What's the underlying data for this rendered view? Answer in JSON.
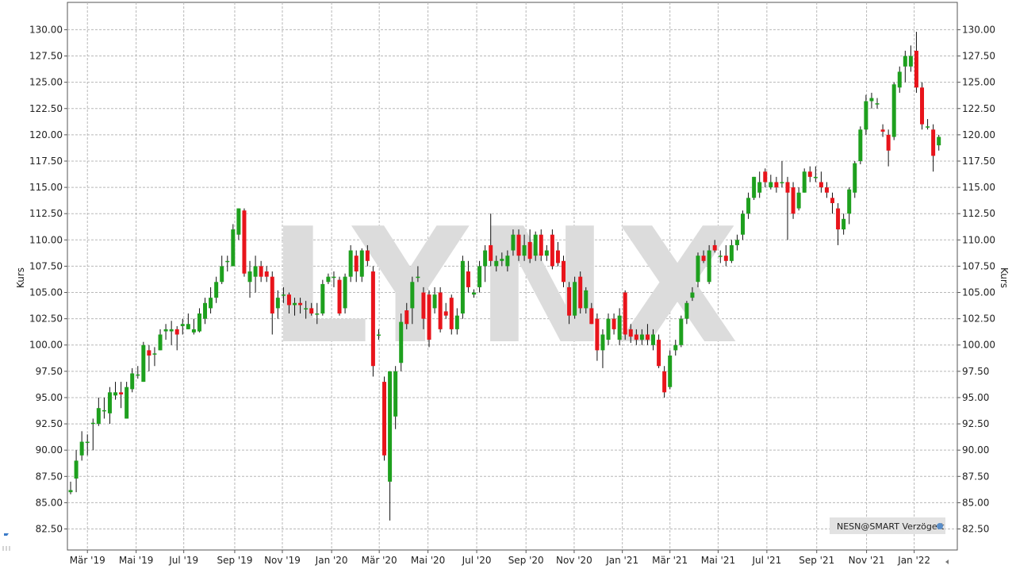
{
  "chart_data": {
    "type": "candlestick",
    "watermark": "LYNX",
    "legend_text": "NESN@SMART Verzögert",
    "y_axis_label": "Kurs",
    "y2_axis_label": "Kurs",
    "grid": true,
    "up_color": "#1ea01e",
    "down_color": "#e8141b",
    "xlim": [
      -0.57,
      158.3
    ],
    "xticks": [
      {
        "value": 3.0,
        "label": "Mär '19"
      },
      {
        "value": 11.7,
        "label": "Mai '19"
      },
      {
        "value": 20.2,
        "label": "Jul '19"
      },
      {
        "value": 29.3,
        "label": "Sep '19"
      },
      {
        "value": 37.8,
        "label": "Nov '19"
      },
      {
        "value": 46.6,
        "label": "Jan '20"
      },
      {
        "value": 55.1,
        "label": "Mär '20"
      },
      {
        "value": 63.8,
        "label": "Mai '20"
      },
      {
        "value": 72.5,
        "label": "Jul '20"
      },
      {
        "value": 81.3,
        "label": "Sep '20"
      },
      {
        "value": 89.9,
        "label": "Nov '20"
      },
      {
        "value": 98.5,
        "label": "Jan '21"
      },
      {
        "value": 107.0,
        "label": "Mär '21"
      },
      {
        "value": 115.6,
        "label": "Mai '21"
      },
      {
        "value": 124.3,
        "label": "Jul '21"
      },
      {
        "value": 133.2,
        "label": "Sep '21"
      },
      {
        "value": 142.1,
        "label": "Nov '21"
      },
      {
        "value": 150.6,
        "label": "Jan '22"
      }
    ],
    "ylim": [
      80.5,
      132.6
    ],
    "yticks": [
      {
        "value": 82.5,
        "label": "82.50"
      },
      {
        "value": 85,
        "label": "85.00"
      },
      {
        "value": 87.5,
        "label": "87.50"
      },
      {
        "value": 90,
        "label": "90.00"
      },
      {
        "value": 92.5,
        "label": "92.50"
      },
      {
        "value": 95,
        "label": "95.00"
      },
      {
        "value": 97.5,
        "label": "97.50"
      },
      {
        "value": 100,
        "label": "100.00"
      },
      {
        "value": 102.5,
        "label": "102.50"
      },
      {
        "value": 105,
        "label": "105.00"
      },
      {
        "value": 107.5,
        "label": "107.50"
      },
      {
        "value": 110,
        "label": "110.00"
      },
      {
        "value": 112.5,
        "label": "112.50"
      },
      {
        "value": 115,
        "label": "115.00"
      },
      {
        "value": 117.5,
        "label": "117.50"
      },
      {
        "value": 120,
        "label": "120.00"
      },
      {
        "value": 122.5,
        "label": "122.50"
      },
      {
        "value": 125,
        "label": "125.00"
      },
      {
        "value": 127.5,
        "label": "127.50"
      },
      {
        "value": 130,
        "label": "130.00"
      }
    ],
    "open": [
      86,
      87.3,
      89.5,
      90.8,
      92.5,
      92.5,
      93.8,
      93.5,
      95.2,
      95.5,
      93,
      95.8,
      97.2,
      96.5,
      99.5,
      99.2,
      99.5,
      101.3,
      101.3,
      101.5,
      101.8,
      101.5,
      101.2,
      101.3,
      102.5,
      103.5,
      104.5,
      106,
      108,
      107.5,
      110.5,
      112.8,
      106,
      106.5,
      107.5,
      107,
      106.5,
      103.5,
      104.8,
      104.8,
      103.8,
      104,
      103.5,
      103.5,
      103,
      103,
      106,
      106.5,
      106.2,
      103.5,
      106.5,
      108.5,
      106.5,
      109,
      107,
      101,
      96.5,
      87,
      93.2,
      98.3,
      103.3,
      103.5,
      106.5,
      105,
      104.8,
      103.5,
      105,
      103.2,
      104.5,
      101.5,
      103,
      107,
      104.8,
      105.5,
      107.5,
      109.5,
      107.5,
      108,
      107.5,
      109,
      110.5,
      108.5,
      109.8,
      108.5,
      110.5,
      108.5,
      110.5,
      109,
      108,
      105.5,
      102.8,
      106.5,
      103.5,
      103.5,
      102.5,
      99.5,
      100.5,
      102.5,
      100.5,
      105,
      101.5,
      101,
      100.5,
      101,
      100,
      100.5,
      97.5,
      96,
      99.5,
      100,
      102.5,
      104.5,
      106,
      108.5,
      106,
      109.5,
      108.5,
      108.5,
      108,
      109.5,
      110.5,
      112.5,
      114,
      114.5,
      116.5,
      115,
      115.5,
      115.5,
      115.5,
      115,
      113,
      114.5,
      116.5,
      116,
      115.5,
      115,
      114,
      113,
      111,
      112.5,
      114.5,
      117.5,
      120.5,
      123.2,
      123,
      120.5,
      120,
      119.8,
      124.5,
      126.5,
      126.5,
      128,
      124.5,
      120.8,
      120.5,
      119
    ],
    "high": [
      87,
      90,
      91.8,
      91.5,
      93,
      95,
      95,
      96,
      96.5,
      96.5,
      96.5,
      97.8,
      98,
      100.3,
      100,
      99.8,
      101.5,
      102,
      102.3,
      101.8,
      102.5,
      103,
      102.5,
      103.5,
      104.5,
      105.5,
      106.5,
      108.5,
      108.5,
      111.5,
      113,
      113,
      108,
      108.5,
      108,
      107.5,
      107,
      105.2,
      105.5,
      105,
      104.5,
      104.5,
      104.2,
      104,
      104,
      106.2,
      106.8,
      107,
      106.5,
      106.8,
      109.5,
      109,
      109.2,
      109.5,
      107.5,
      101.5,
      97,
      97.5,
      98,
      103,
      104,
      106.5,
      107.5,
      105.5,
      105.2,
      105.5,
      105.5,
      104,
      104.8,
      103.5,
      108.5,
      108,
      105.3,
      108,
      109.5,
      112.5,
      108.5,
      108.8,
      109,
      111,
      111,
      110.5,
      111,
      110.8,
      111,
      109.5,
      111,
      109.8,
      108.5,
      106,
      106.5,
      107,
      105.5,
      104,
      103,
      101.5,
      103,
      103,
      103.5,
      105.2,
      102,
      101.5,
      101.5,
      102,
      101.5,
      101,
      98,
      99.5,
      100.5,
      102.8,
      104.2,
      105.5,
      108.8,
      109,
      109.5,
      110,
      109,
      109.5,
      110,
      110.5,
      112.8,
      114.5,
      116,
      116.5,
      116.8,
      116.2,
      116,
      117.5,
      116,
      115.5,
      115,
      116.8,
      117,
      117,
      116.5,
      115.5,
      114.5,
      113.5,
      112.5,
      115,
      117.5,
      120.8,
      123.8,
      124,
      123.5,
      121,
      120.5,
      125,
      126.5,
      128,
      128.5,
      129.8,
      125,
      121.5,
      121,
      120
    ],
    "low": [
      85.8,
      86,
      89,
      89.5,
      90,
      92.3,
      93,
      92.5,
      94.8,
      94,
      93,
      95.5,
      96.8,
      96.5,
      97.5,
      98,
      99.5,
      100.5,
      100,
      99.5,
      101,
      101.5,
      101,
      101.2,
      102,
      103,
      104,
      105.8,
      107,
      107.5,
      110,
      106.5,
      104.5,
      105,
      106,
      106,
      101,
      102.5,
      104,
      103,
      102.8,
      103,
      102.5,
      102.8,
      102,
      102.8,
      105.8,
      105.5,
      102.8,
      103,
      106,
      106,
      106,
      107.5,
      97,
      100.5,
      89,
      83.3,
      92,
      97.5,
      101.5,
      102,
      106,
      101.5,
      99.8,
      103,
      101.2,
      102.5,
      101,
      101,
      102.5,
      105,
      104.5,
      105,
      106,
      107.5,
      107,
      107.5,
      107,
      108.5,
      108,
      108,
      107.8,
      108,
      108,
      108,
      107.2,
      107.5,
      105.5,
      102,
      102.5,
      103,
      103,
      102,
      98.5,
      97.8,
      100,
      101,
      100,
      100.5,
      100.2,
      100,
      100,
      100,
      99.5,
      97.8,
      95,
      95.8,
      99,
      99.8,
      102,
      104.2,
      105.5,
      107.8,
      105.8,
      108.8,
      107.8,
      107.5,
      107.8,
      109,
      110,
      112,
      113.8,
      114,
      115,
      114.8,
      114.5,
      115,
      110,
      112,
      112.8,
      114.5,
      115.5,
      115.5,
      114.5,
      114,
      112.5,
      109.5,
      110.5,
      111.5,
      114,
      117.2,
      120,
      122.5,
      122.5,
      119.8,
      117,
      119.5,
      124,
      125,
      126,
      124,
      120.5,
      120.5,
      116.5,
      118.5
    ],
    "close": [
      86.2,
      89,
      90.8,
      90.8,
      92.6,
      94,
      93.8,
      95.5,
      95.5,
      95.3,
      96,
      97.3,
      97.2,
      100,
      99,
      99.2,
      101,
      101.5,
      101.5,
      101,
      102,
      102,
      101.5,
      103,
      104,
      104.5,
      106,
      107.5,
      108,
      111,
      113,
      106.8,
      107,
      107.5,
      106.5,
      106.5,
      103,
      104.5,
      104.8,
      103.8,
      104,
      103.8,
      103.5,
      103,
      103,
      105.8,
      106.5,
      106.5,
      103,
      106.5,
      109,
      107,
      109,
      108,
      98,
      101,
      89.5,
      97.5,
      97.5,
      102.2,
      102,
      106,
      106.5,
      102.5,
      100.5,
      104.8,
      101.5,
      102.8,
      101.5,
      102.8,
      108,
      105.5,
      105,
      107.5,
      109,
      108,
      108,
      108.2,
      108.5,
      110.5,
      108.5,
      109.5,
      108.2,
      110.5,
      108.5,
      109,
      107.5,
      107.8,
      106,
      102.8,
      106,
      103.5,
      105.2,
      102,
      99.5,
      101,
      102.5,
      101.5,
      102.8,
      101,
      100.8,
      100.5,
      101,
      100.5,
      101,
      98,
      95.5,
      99,
      100,
      102.5,
      104,
      105,
      108.5,
      108,
      109,
      109,
      108.5,
      108,
      109.5,
      110,
      112.5,
      114,
      116,
      115.5,
      115.5,
      115.5,
      115,
      115.5,
      114.5,
      112.5,
      114.5,
      116.5,
      116,
      116,
      115,
      114.5,
      113.5,
      111,
      112,
      114.8,
      117.3,
      120.5,
      123.2,
      123.5,
      123,
      120.3,
      118.5,
      124.8,
      126,
      127.5,
      127.5,
      124.5,
      121,
      120.8,
      118,
      119.8
    ]
  }
}
